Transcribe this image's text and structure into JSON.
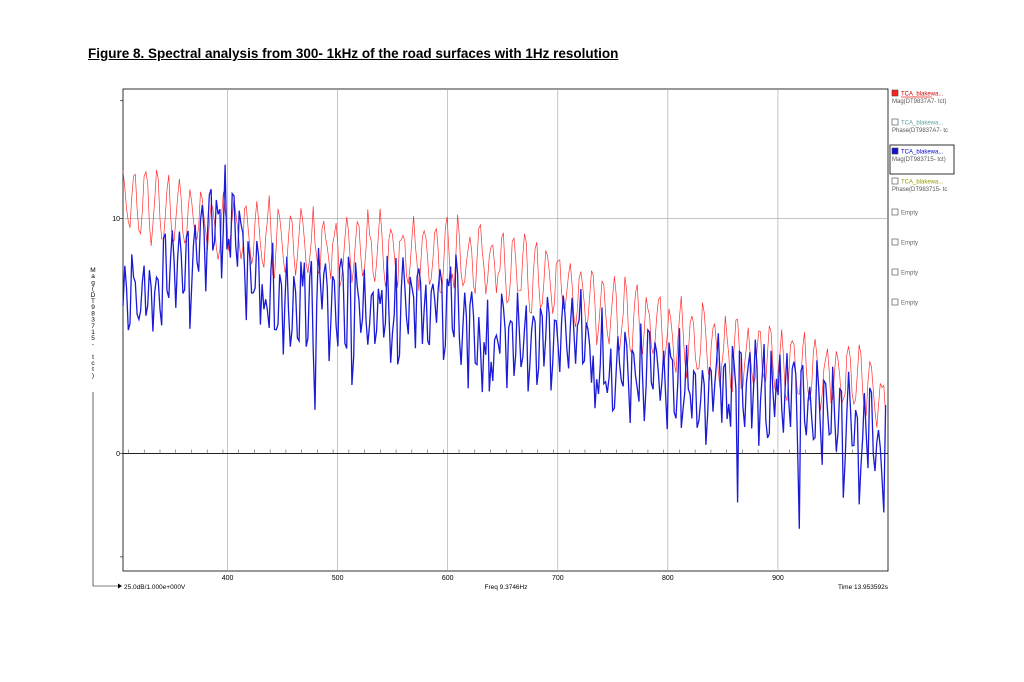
{
  "title": "Figure 8. Spectral analysis from 300- 1kHz of the road surfaces with 1Hz resolution",
  "chart_data": {
    "type": "line",
    "x_range": [
      305,
      1000
    ],
    "y_range": [
      -5,
      15.5
    ],
    "x_ticks": [
      "400",
      "500",
      "600",
      "700",
      "800",
      "900"
    ],
    "y_ticks": [
      "10",
      "0"
    ],
    "ylabel": "Mag(DT983715- tct)",
    "footer": {
      "left": "25.0dB/1.000e+000V",
      "center": "Freq 9.3746Hz",
      "right": "Time 13.953592s"
    },
    "series": [
      {
        "name": "TCA_blakewa...",
        "color": "#ff3030",
        "anchors": [
          [
            305,
            10.8
          ],
          [
            330,
            10.5
          ],
          [
            360,
            10.1
          ],
          [
            400,
            9.6
          ],
          [
            440,
            9.1
          ],
          [
            480,
            8.8
          ],
          [
            520,
            8.6
          ],
          [
            560,
            8.6
          ],
          [
            600,
            8.3
          ],
          [
            640,
            8.2
          ],
          [
            680,
            7.4
          ],
          [
            700,
            7.3
          ],
          [
            740,
            6.1
          ],
          [
            780,
            5.4
          ],
          [
            820,
            4.8
          ],
          [
            860,
            4.2
          ],
          [
            900,
            3.8
          ],
          [
            940,
            3.4
          ],
          [
            970,
            3.2
          ],
          [
            995,
            2.2
          ]
        ]
      },
      {
        "name": "TCA_blakewa...",
        "color": "#1a1ad8",
        "anchors": [
          [
            305,
            6.7
          ],
          [
            340,
            7.0
          ],
          [
            370,
            8.2
          ],
          [
            390,
            10.0
          ],
          [
            405,
            9.5
          ],
          [
            420,
            7.8
          ],
          [
            440,
            6.6
          ],
          [
            470,
            6.6
          ],
          [
            500,
            6.4
          ],
          [
            540,
            6.2
          ],
          [
            580,
            6.3
          ],
          [
            610,
            6.4
          ],
          [
            620,
            5.0
          ],
          [
            660,
            4.5
          ],
          [
            690,
            4.7
          ],
          [
            720,
            5.5
          ],
          [
            740,
            3.8
          ],
          [
            780,
            3.9
          ],
          [
            820,
            2.8
          ],
          [
            860,
            2.9
          ],
          [
            900,
            2.5
          ],
          [
            930,
            2.2
          ],
          [
            960,
            1.5
          ],
          [
            990,
            0.4
          ],
          [
            998,
            -0.5
          ]
        ]
      }
    ]
  },
  "legend": [
    {
      "name": "TCA_blakewa...",
      "sub": "Mag(DT9837A7- tct)",
      "color": "#ff2020",
      "checked": true,
      "name_color": "#cc0000"
    },
    {
      "name": "TCA_blakewa...",
      "sub": "Phase(DT9837A7- tc",
      "color": "#ffffff",
      "checked": false,
      "name_color": "#5aa0a0"
    },
    {
      "name": "TCA_blakewa...",
      "sub": "Mag(DT983715- tct)",
      "color": "#1010d0",
      "checked": true,
      "name_color": "#0000cc"
    },
    {
      "name": "TCA_blakewa...",
      "sub": "Phase(DT983715- tc",
      "color": "#ffffff",
      "checked": false,
      "name_color": "#999900"
    },
    {
      "name": "Empty",
      "sub": "",
      "color": "#ffffff",
      "checked": false,
      "name_color": "#666666"
    },
    {
      "name": "Empty",
      "sub": "",
      "color": "#ffffff",
      "checked": false,
      "name_color": "#666666"
    },
    {
      "name": "Empty",
      "sub": "",
      "color": "#ffffff",
      "checked": false,
      "name_color": "#666666"
    },
    {
      "name": "Empty",
      "sub": "",
      "color": "#ffffff",
      "checked": false,
      "name_color": "#666666"
    }
  ]
}
